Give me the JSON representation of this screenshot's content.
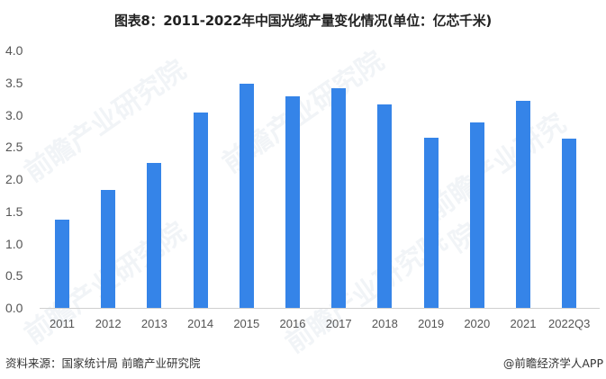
{
  "title": "图表8：2011-2022年中国光缆产量变化情况(单位：亿芯千米)",
  "footer": {
    "source": "资料来源：国家统计局 前瞻产业研究院",
    "credit": "@前瞻经济学人APP"
  },
  "watermark": "前瞻产业研究院",
  "colors": {
    "bar": "#3584e8",
    "axis": "#d0d0d0"
  },
  "chart_data": {
    "type": "bar",
    "title": "图表8：2011-2022年中国光缆产量变化情况(单位：亿芯千米)",
    "xlabel": "",
    "ylabel": "亿芯千米",
    "categories": [
      "2011",
      "2012",
      "2013",
      "2014",
      "2015",
      "2016",
      "2017",
      "2018",
      "2019",
      "2020",
      "2021",
      "2022Q3"
    ],
    "values": [
      1.37,
      1.83,
      2.25,
      3.03,
      3.48,
      3.29,
      3.41,
      3.16,
      2.64,
      2.88,
      3.22,
      2.63
    ],
    "yticks": [
      "0.0",
      "0.5",
      "1.0",
      "1.5",
      "2.0",
      "2.5",
      "3.0",
      "3.5",
      "4.0"
    ],
    "ylim": [
      0,
      4.0
    ],
    "grid": false,
    "legend": "none"
  }
}
